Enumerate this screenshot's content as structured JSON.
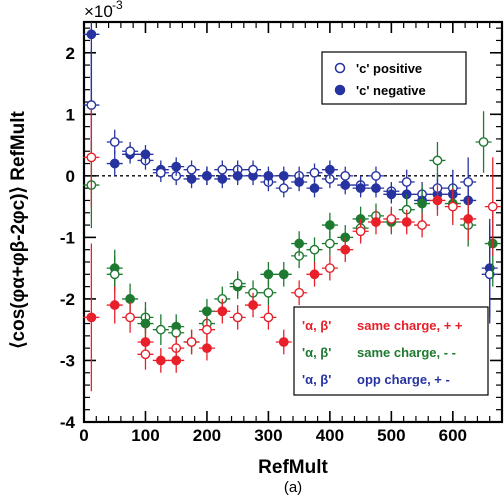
{
  "chart_data": {
    "type": "scatter",
    "xlabel": "RefMult",
    "ylabel": "⟨cos(φα+φβ-2φc)⟩ RefMult",
    "exponent_label": "×10",
    "exponent_power": "-3",
    "caption": "(a)",
    "xlim": [
      0,
      680
    ],
    "ylim": [
      -4,
      2.5
    ],
    "x_ticks": [
      0,
      100,
      200,
      300,
      400,
      500,
      600
    ],
    "y_ticks": [
      -4,
      -3,
      -2,
      -1,
      0,
      1,
      2
    ],
    "zero_line": true,
    "legend_top": {
      "placement": "top-right",
      "entries": [
        {
          "label": "'c' positive",
          "series": "c_positive"
        },
        {
          "label": "'c' negative",
          "series": "c_negative"
        }
      ]
    },
    "legend_bottom": {
      "placement": "bottom-right",
      "entries": [
        {
          "prefix": "'α, β'",
          "label": "same charge, + +",
          "series": "same_pp",
          "color": "#e8202a"
        },
        {
          "prefix": "'α, β'",
          "label": "same charge, - -",
          "series": "same_mm",
          "color": "#1e7a30"
        },
        {
          "prefix": "'α, β'",
          "label": "opp charge, + -",
          "series": "opp_pm",
          "color": "#2633a0"
        }
      ]
    },
    "series": [
      {
        "id": "opp_pm",
        "color": "#2633a0",
        "x": [
          12,
          12,
          50,
          50,
          75,
          75,
          100,
          100,
          125,
          125,
          150,
          150,
          175,
          175,
          200,
          200,
          225,
          225,
          250,
          250,
          275,
          275,
          300,
          300,
          325,
          325,
          350,
          350,
          375,
          375,
          400,
          400,
          425,
          425,
          450,
          450,
          475,
          475,
          500,
          500,
          525,
          525,
          550,
          550,
          575,
          575,
          600,
          600,
          625,
          625,
          660,
          660
        ],
        "y": [
          2.3,
          1.15,
          0.55,
          0.2,
          0.35,
          0.4,
          0.25,
          0.35,
          0.1,
          0.05,
          0.0,
          0.15,
          -0.05,
          0.1,
          0.0,
          0.0,
          -0.05,
          0.1,
          0.1,
          0.0,
          0.0,
          0.1,
          -0.1,
          0.0,
          0.0,
          -0.2,
          0.0,
          -0.1,
          -0.2,
          0.05,
          -0.05,
          0.1,
          -0.15,
          0.0,
          -0.15,
          -0.2,
          -0.2,
          0.0,
          -0.25,
          -0.3,
          -0.3,
          -0.1,
          -0.3,
          -0.4,
          -0.3,
          -0.2,
          -0.2,
          -0.3,
          -0.4,
          -0.1,
          -1.5,
          -1.6
        ],
        "yerr": [
          1.2,
          0.9,
          0.2,
          0.2,
          0.15,
          0.15,
          0.15,
          0.15,
          0.15,
          0.15,
          0.15,
          0.15,
          0.15,
          0.15,
          0.15,
          0.15,
          0.15,
          0.15,
          0.15,
          0.15,
          0.15,
          0.15,
          0.15,
          0.15,
          0.15,
          0.15,
          0.15,
          0.15,
          0.15,
          0.15,
          0.15,
          0.15,
          0.15,
          0.15,
          0.15,
          0.15,
          0.15,
          0.15,
          0.15,
          0.15,
          0.2,
          0.2,
          0.2,
          0.2,
          0.25,
          0.25,
          0.3,
          0.3,
          0.4,
          0.4,
          0.8,
          0.8
        ],
        "filled": [
          true,
          false,
          false,
          true,
          true,
          false,
          false,
          true,
          true,
          false,
          false,
          true,
          true,
          false,
          false,
          true,
          true,
          false,
          false,
          true,
          true,
          false,
          false,
          true,
          true,
          false,
          false,
          true,
          true,
          false,
          false,
          true,
          true,
          false,
          false,
          true,
          true,
          false,
          false,
          true,
          true,
          false,
          false,
          true,
          true,
          false,
          false,
          true,
          true,
          false,
          true,
          false
        ]
      },
      {
        "id": "same_mm",
        "color": "#1e7a30",
        "x": [
          12,
          50,
          50,
          75,
          100,
          100,
          125,
          150,
          150,
          175,
          200,
          200,
          225,
          250,
          250,
          275,
          300,
          300,
          325,
          350,
          350,
          375,
          400,
          400,
          425,
          450,
          450,
          475,
          500,
          525,
          550,
          575,
          600,
          625,
          650,
          665
        ],
        "y": [
          -0.15,
          -1.5,
          -1.6,
          -2.0,
          -2.3,
          -2.4,
          -2.5,
          -2.45,
          -2.55,
          -2.7,
          -2.4,
          -2.2,
          -2.0,
          -1.8,
          -1.75,
          -1.9,
          -1.6,
          -1.9,
          -1.6,
          -1.3,
          -1.1,
          -1.2,
          -0.8,
          -1.1,
          -1.0,
          -0.85,
          -0.7,
          -0.65,
          -0.75,
          -0.55,
          -0.45,
          0.25,
          -0.45,
          -0.8,
          0.55,
          -1.1
        ],
        "yerr": [
          0.7,
          0.3,
          0.3,
          0.25,
          0.25,
          0.25,
          0.25,
          0.2,
          0.2,
          0.2,
          0.2,
          0.2,
          0.2,
          0.2,
          0.2,
          0.2,
          0.2,
          0.2,
          0.2,
          0.2,
          0.2,
          0.2,
          0.2,
          0.2,
          0.2,
          0.2,
          0.2,
          0.2,
          0.2,
          0.25,
          0.3,
          0.3,
          0.3,
          0.35,
          0.5,
          0.7
        ],
        "filled": [
          false,
          true,
          false,
          true,
          false,
          true,
          false,
          true,
          false,
          true,
          false,
          true,
          false,
          true,
          false,
          false,
          true,
          false,
          true,
          false,
          true,
          false,
          true,
          false,
          true,
          false,
          true,
          false,
          true,
          false,
          true,
          false,
          true,
          false,
          false,
          true
        ]
      },
      {
        "id": "same_pp",
        "color": "#e8202a",
        "x": [
          12,
          12,
          50,
          75,
          100,
          100,
          125,
          150,
          150,
          175,
          200,
          200,
          225,
          250,
          275,
          300,
          325,
          350,
          375,
          400,
          425,
          450,
          475,
          500,
          525,
          550,
          575,
          600,
          625,
          665
        ],
        "y": [
          0.3,
          -2.3,
          -2.1,
          -2.3,
          -2.7,
          -2.9,
          -3.0,
          -2.8,
          -3.0,
          -2.7,
          -2.8,
          -2.5,
          -2.2,
          -2.3,
          -2.1,
          -2.3,
          -2.7,
          -1.9,
          -1.6,
          -1.5,
          -1.2,
          -0.9,
          -0.75,
          -0.7,
          -0.75,
          -0.8,
          -0.4,
          -0.5,
          -0.7,
          -0.5
        ],
        "yerr": [
          0.8,
          1.2,
          0.3,
          0.25,
          0.25,
          0.25,
          0.2,
          0.2,
          0.2,
          0.2,
          0.2,
          0.2,
          0.2,
          0.2,
          0.2,
          0.2,
          0.2,
          0.2,
          0.2,
          0.2,
          0.2,
          0.2,
          0.2,
          0.2,
          0.2,
          0.2,
          0.25,
          0.3,
          0.35,
          0.8
        ],
        "filled": [
          false,
          true,
          true,
          false,
          true,
          false,
          true,
          false,
          true,
          false,
          true,
          false,
          true,
          false,
          true,
          false,
          true,
          false,
          true,
          false,
          true,
          false,
          true,
          false,
          true,
          false,
          true,
          false,
          true,
          false
        ]
      }
    ]
  }
}
